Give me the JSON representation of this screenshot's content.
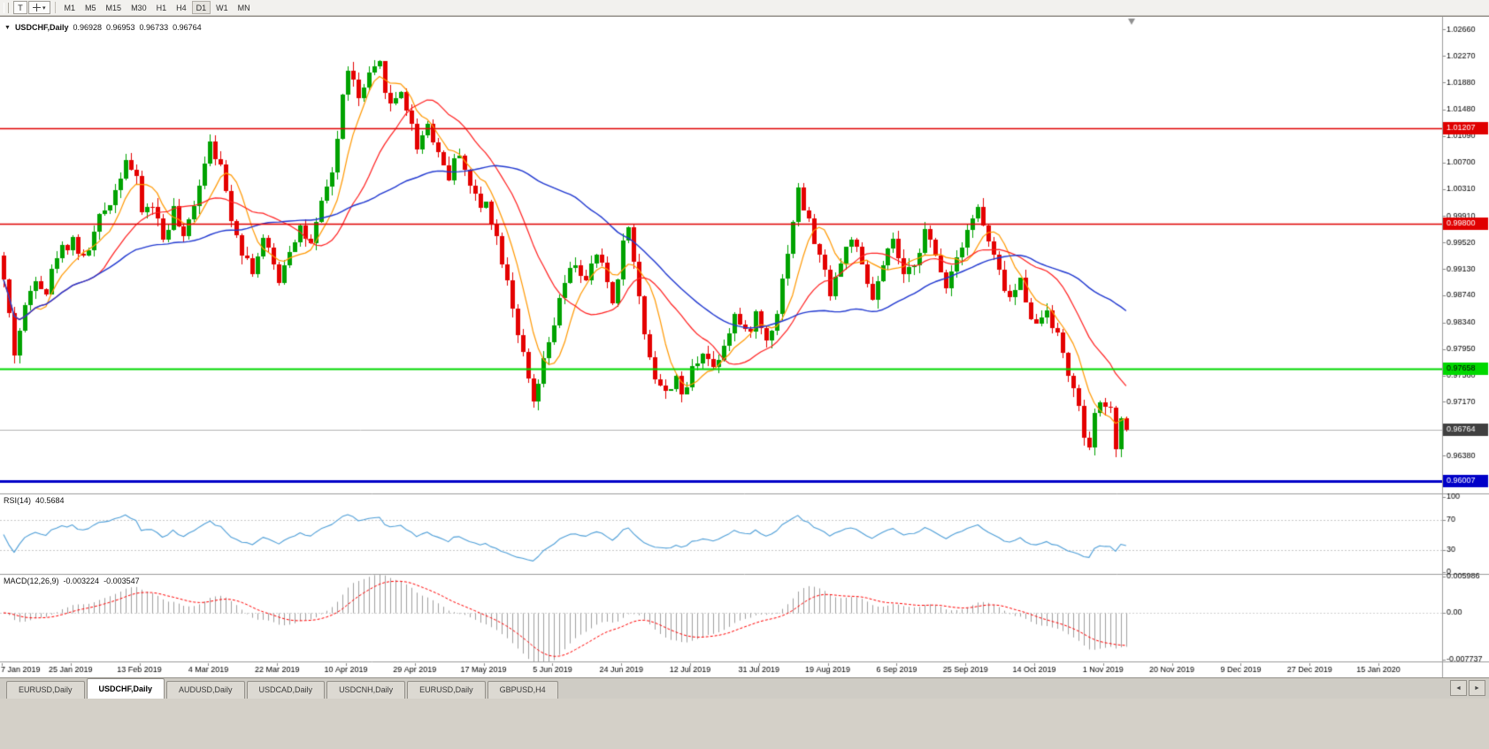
{
  "icons": {
    "collapse_arrow": "▼",
    "dropdown_caret": "▾",
    "tab_scroll_left": "◄",
    "tab_scroll_right": "►"
  },
  "toolbar": {
    "t_label": "T",
    "timeframes": [
      "M1",
      "M5",
      "M15",
      "M30",
      "H1",
      "H4",
      "D1",
      "W1",
      "MN"
    ],
    "active_timeframe": "D1"
  },
  "chart": {
    "symbol_label": "USDCHF,Daily",
    "open": "0.96928",
    "high": "0.96953",
    "low": "0.96733",
    "close": "0.96764"
  },
  "indicators": {
    "rsi": {
      "label": "RSI(14)",
      "value": "40.5684"
    },
    "macd": {
      "label": "MACD(12,26,9)",
      "value1": "-0.003224",
      "value2": "-0.003547"
    }
  },
  "tabs": [
    {
      "label": "EURUSD,Daily",
      "active": false
    },
    {
      "label": "USDCHF,Daily",
      "active": true
    },
    {
      "label": "AUDUSD,Daily",
      "active": false
    },
    {
      "label": "USDCAD,Daily",
      "active": false
    },
    {
      "label": "USDCNH,Daily",
      "active": false
    },
    {
      "label": "EURUSD,Daily",
      "active": false
    },
    {
      "label": "GBPUSD,H4",
      "active": false
    }
  ],
  "chart_data": {
    "type": "candlestick",
    "symbol": "USDCHF",
    "timeframe": "Daily",
    "bars": 213,
    "price_range": [
      0.9582,
      1.0282
    ],
    "y_ticks": [
      "1.02660",
      "1.02270",
      "1.01880",
      "1.01480",
      "1.01090",
      "1.00700",
      "1.00310",
      "0.99910",
      "0.99520",
      "0.99130",
      "0.98740",
      "0.98340",
      "0.97950",
      "0.97560",
      "0.97170",
      "0.96380"
    ],
    "x_labels": [
      "7 Jan 2019",
      "25 Jan 2019",
      "13 Feb 2019",
      "4 Mar 2019",
      "22 Mar 2019",
      "10 Apr 2019",
      "29 Apr 2019",
      "17 May 2019",
      "5 Jun 2019",
      "24 Jun 2019",
      "12 Jul 2019",
      "31 Jul 2019",
      "19 Aug 2019",
      "6 Sep 2019",
      "25 Sep 2019",
      "14 Oct 2019",
      "1 Nov 2019",
      "20 Nov 2019",
      "9 Dec 2019",
      "27 Dec 2019",
      "15 Jan 2020"
    ],
    "h_lines": [
      {
        "value": 1.01207,
        "label": "1.01207",
        "color": "#e00000",
        "label_bg": "#e00000",
        "label_fg": "#ffffff",
        "width": 1.5
      },
      {
        "value": 0.998,
        "label": "0.99800",
        "color": "#e00000",
        "label_bg": "#e00000",
        "label_fg": "#ffffff",
        "width": 1.5
      },
      {
        "value": 0.97658,
        "label": "0.97658",
        "color": "#00d800",
        "label_bg": "#00d800",
        "label_fg": "#000000",
        "width": 2
      },
      {
        "value": 0.96007,
        "label": "0.96007",
        "color": "#0000c8",
        "label_bg": "#0000c8",
        "label_fg": "#ffffff",
        "width": 3
      }
    ],
    "current_price": {
      "value": 0.96764,
      "label": "0.96764",
      "label_bg": "#404040",
      "label_fg": "#ffffff",
      "line_color": "#b4b4b4"
    },
    "last_bar": {
      "o": 0.96928,
      "h": 0.96953,
      "l": 0.96733,
      "c": 0.96764
    },
    "candle_up_color": "#00a200",
    "candle_down_color": "#e40000",
    "ma": [
      {
        "period": 7,
        "color": "#ff9800"
      },
      {
        "period": 18,
        "color": "#ff1f1f"
      },
      {
        "period": 45,
        "color": "#2038d0"
      }
    ],
    "rsi": {
      "period": 14,
      "last": 40.5684,
      "ticks": [
        "100",
        "70",
        "30",
        "0"
      ],
      "levels": [
        70,
        30
      ],
      "color": "#4f9fd8"
    },
    "macd": {
      "fast": 12,
      "slow": 26,
      "signal": 9,
      "last_macd": -0.003224,
      "last_signal": -0.003547,
      "ticks": [
        "0.005986",
        "0.00",
        "-0.007737"
      ],
      "range": [
        -0.007737,
        0.005986
      ],
      "hist_color": "#9f9f9f",
      "signal_color": "#ff0000"
    },
    "price_anchors": [
      [
        0,
        0.9895
      ],
      [
        1,
        0.9845
      ],
      [
        2,
        0.979
      ],
      [
        4,
        0.9855
      ],
      [
        6,
        0.9905
      ],
      [
        8,
        0.988
      ],
      [
        10,
        0.9935
      ],
      [
        13,
        0.9958
      ],
      [
        15,
        0.9925
      ],
      [
        18,
        0.9985
      ],
      [
        21,
        1.003
      ],
      [
        23,
        1.0078
      ],
      [
        25,
        1.004
      ],
      [
        26,
        0.9998
      ],
      [
        28,
        1.0008
      ],
      [
        30,
        0.9958
      ],
      [
        32,
        1.0
      ],
      [
        34,
        0.9952
      ],
      [
        36,
        1.0012
      ],
      [
        38,
        1.0072
      ],
      [
        39,
        1.0108
      ],
      [
        41,
        1.006
      ],
      [
        43,
        0.9992
      ],
      [
        45,
        0.9942
      ],
      [
        47,
        0.9912
      ],
      [
        49,
        0.9955
      ],
      [
        52,
        0.9898
      ],
      [
        54,
        0.9945
      ],
      [
        56,
        0.9975
      ],
      [
        58,
        0.9945
      ],
      [
        60,
        1.0005
      ],
      [
        62,
        1.0058
      ],
      [
        63,
        1.0105
      ],
      [
        64,
        1.0165
      ],
      [
        65,
        1.0212
      ],
      [
        67,
        1.0162
      ],
      [
        69,
        1.0195
      ],
      [
        71,
        1.0212
      ],
      [
        73,
        1.0152
      ],
      [
        75,
        1.0178
      ],
      [
        77,
        1.0122
      ],
      [
        78,
        1.0095
      ],
      [
        80,
        1.0128
      ],
      [
        82,
        1.0085
      ],
      [
        84,
        1.005
      ],
      [
        86,
        1.0088
      ],
      [
        88,
        1.0035
      ],
      [
        90,
        1.0002
      ],
      [
        91,
        1.0018
      ],
      [
        93,
        0.9958
      ],
      [
        95,
        0.99
      ],
      [
        97,
        0.982
      ],
      [
        99,
        0.9745
      ],
      [
        100,
        0.9712
      ],
      [
        102,
        0.9772
      ],
      [
        104,
        0.9832
      ],
      [
        106,
        0.9892
      ],
      [
        108,
        0.9922
      ],
      [
        110,
        0.9892
      ],
      [
        112,
        0.9935
      ],
      [
        114,
        0.9895
      ],
      [
        115,
        0.9862
      ],
      [
        116,
        0.9905
      ],
      [
        117,
        0.9948
      ],
      [
        118,
        0.9983
      ],
      [
        119,
        0.992
      ],
      [
        121,
        0.982
      ],
      [
        123,
        0.9755
      ],
      [
        125,
        0.9728
      ],
      [
        127,
        0.9758
      ],
      [
        128,
        0.9718
      ],
      [
        130,
        0.9765
      ],
      [
        132,
        0.9795
      ],
      [
        134,
        0.9768
      ],
      [
        136,
        0.9805
      ],
      [
        138,
        0.9845
      ],
      [
        140,
        0.9815
      ],
      [
        142,
        0.9845
      ],
      [
        144,
        0.9808
      ],
      [
        146,
        0.9852
      ],
      [
        148,
        0.9942
      ],
      [
        150,
        1.0028
      ],
      [
        152,
        0.998
      ],
      [
        154,
        0.993
      ],
      [
        156,
        0.9882
      ],
      [
        158,
        0.9922
      ],
      [
        160,
        0.9962
      ],
      [
        162,
        0.9912
      ],
      [
        164,
        0.9868
      ],
      [
        166,
        0.9912
      ],
      [
        168,
        0.9958
      ],
      [
        170,
        0.9895
      ],
      [
        172,
        0.9925
      ],
      [
        174,
        0.9968
      ],
      [
        176,
        0.993
      ],
      [
        178,
        0.9892
      ],
      [
        180,
        0.9932
      ],
      [
        182,
        0.9975
      ],
      [
        184,
        1.0002
      ],
      [
        186,
        0.9952
      ],
      [
        188,
        0.9905
      ],
      [
        190,
        0.9868
      ],
      [
        192,
        0.9895
      ],
      [
        194,
        0.9848
      ],
      [
        195,
        0.9828
      ],
      [
        197,
        0.9858
      ],
      [
        199,
        0.9812
      ],
      [
        201,
        0.9762
      ],
      [
        203,
        0.9702
      ],
      [
        204,
        0.9668
      ],
      [
        205,
        0.9642
      ],
      [
        206,
        0.9692
      ],
      [
        207,
        0.9722
      ],
      [
        208,
        0.97
      ],
      [
        209,
        0.9718
      ],
      [
        210,
        0.9638
      ],
      [
        211,
        0.96928
      ],
      [
        212,
        0.96764
      ]
    ]
  }
}
